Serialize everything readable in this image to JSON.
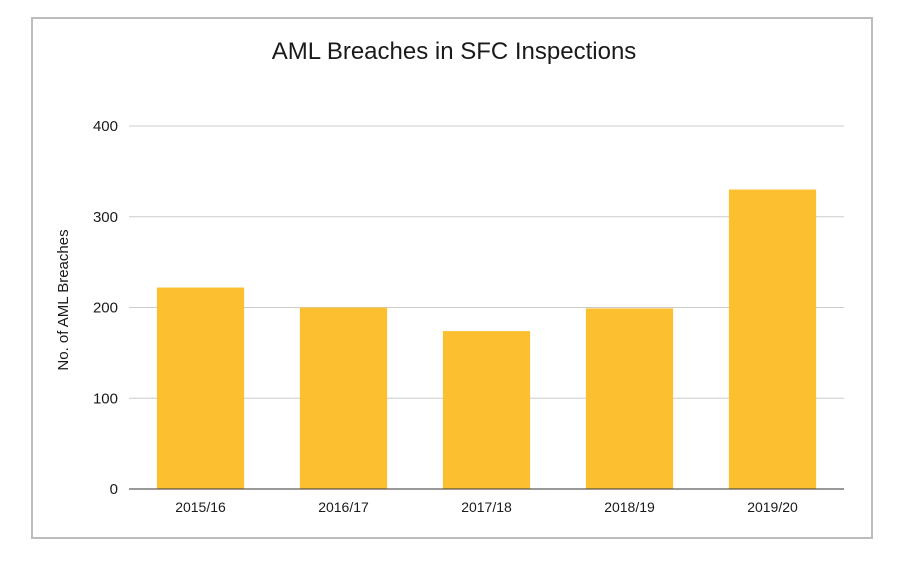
{
  "chart_data": {
    "type": "bar",
    "title": "AML Breaches in SFC Inspections",
    "xlabel": "",
    "ylabel": "No. of AML Breaches",
    "categories": [
      "2015/16",
      "2016/17",
      "2017/18",
      "2018/19",
      "2019/20"
    ],
    "series": [
      {
        "values": [
          222,
          200,
          174,
          199,
          330
        ]
      }
    ],
    "ylim": [
      0,
      400
    ],
    "yticks": [
      0,
      100,
      200,
      300,
      400
    ],
    "grid": true,
    "legend": "none",
    "colors": {
      "bar": "#FBBF2F",
      "grid": "#cccccc",
      "axis": "#333333",
      "frame": "#bdbdbd"
    }
  }
}
